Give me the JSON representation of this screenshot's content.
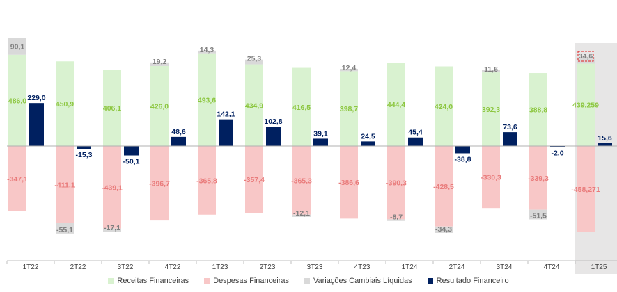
{
  "chart_data": {
    "type": "bar",
    "categories": [
      "1T22",
      "2T22",
      "3T22",
      "4T22",
      "1T23",
      "2T23",
      "3T23",
      "4T23",
      "1T24",
      "2T24",
      "3T24",
      "4T24",
      "1T25"
    ],
    "series": [
      {
        "name": "Receitas Financeiras",
        "color": "#d9f2d0",
        "label_color": "#8cc63f",
        "values": [
          486.0,
          450.9,
          406.1,
          426.0,
          493.6,
          434.9,
          416.5,
          398.7,
          444.4,
          424.0,
          392.3,
          388.8,
          439.259
        ],
        "labels": [
          "486,0",
          "450,9",
          "406,1",
          "426,0",
          "493,6",
          "434,9",
          "416,5",
          "398,7",
          "444,4",
          "424,0",
          "392,3",
          "388,8",
          "439,259"
        ]
      },
      {
        "name": "Despesas Financeiras",
        "color": "#f8c7c7",
        "label_color": "#e97b7b",
        "values": [
          -347.1,
          -411.1,
          -439.1,
          -396.7,
          -365.8,
          -357.4,
          -365.3,
          -386.6,
          -390.3,
          -428.5,
          -330.3,
          -339.3,
          -458.271
        ],
        "labels": [
          "-347,1",
          "-411,1",
          "-439,1",
          "-396,7",
          "-365,8",
          "-357,4",
          "-365,3",
          "-386,6",
          "-390,3",
          "-428,5",
          "-330,3",
          "-339,3",
          "-458,271"
        ]
      },
      {
        "name": "Variações Cambiais Líquidas",
        "color": "#d9d9d9",
        "label_color": "#7f7f7f",
        "values": [
          90.1,
          -55.1,
          -17.1,
          19.2,
          14.3,
          25.3,
          -12.1,
          12.4,
          -8.7,
          -34.3,
          11.6,
          -51.5,
          34.6
        ],
        "labels": [
          "90,1",
          "-55,1",
          "-17,1",
          "19,2",
          "14,3",
          "25,3",
          "-12,1",
          "12,4",
          "-8,7",
          "-34,3",
          "11,6",
          "-51,5",
          "34,6"
        ]
      },
      {
        "name": "Resultado Financeiro",
        "color": "#002060",
        "label_color": "#002060",
        "values": [
          229.0,
          -15.3,
          -50.1,
          48.6,
          142.1,
          102.8,
          39.1,
          24.5,
          45.4,
          -38.8,
          73.6,
          -2.0,
          15.6
        ],
        "labels": [
          "229,0",
          "-15,3",
          "-50,1",
          "48,6",
          "142,1",
          "102,8",
          "39,1",
          "24,5",
          "45,4",
          "-38,8",
          "73,6",
          "-2,0",
          "15,6"
        ]
      }
    ],
    "highlight_category": "1T25",
    "highlight_color": "#e7e6e6",
    "legend_position": "bottom",
    "grid": false,
    "title": "",
    "xlabel": "",
    "ylabel": ""
  }
}
